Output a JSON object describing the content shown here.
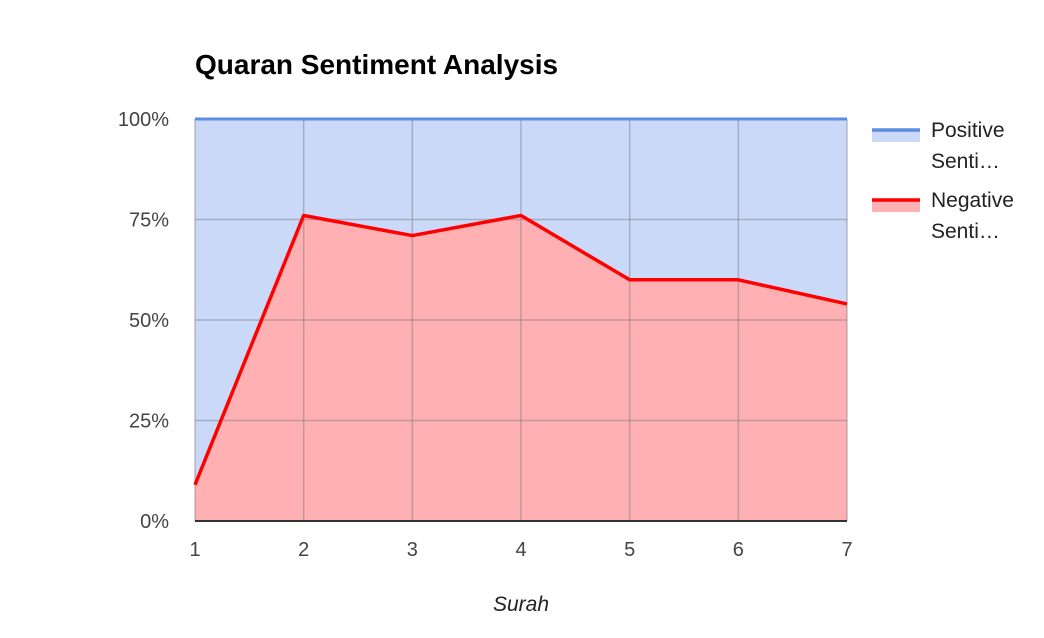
{
  "chart_data": {
    "type": "area",
    "stacked": "percent",
    "title": "Quaran Sentiment Analysis",
    "xlabel": "Surah",
    "ylabel": "",
    "x": [
      1,
      2,
      3,
      4,
      5,
      6,
      7
    ],
    "y_ticks": [
      "0%",
      "25%",
      "50%",
      "75%",
      "100%"
    ],
    "ylim": [
      0,
      100
    ],
    "grid": true,
    "legend_position": "right",
    "series": [
      {
        "name": "Positive Sentiment",
        "legend_lines": [
          "Positive",
          "Senti…"
        ],
        "values": [
          91,
          24,
          29,
          24,
          40,
          40,
          46
        ],
        "line_color": "#5b8de3",
        "fill_color": "#c9d9f7"
      },
      {
        "name": "Negative Sentiment",
        "legend_lines": [
          "Negative",
          "Senti…"
        ],
        "values": [
          9,
          76,
          71,
          76,
          60,
          60,
          54
        ],
        "line_color": "#ff0000",
        "fill_color": "#ffb0b3"
      }
    ]
  }
}
